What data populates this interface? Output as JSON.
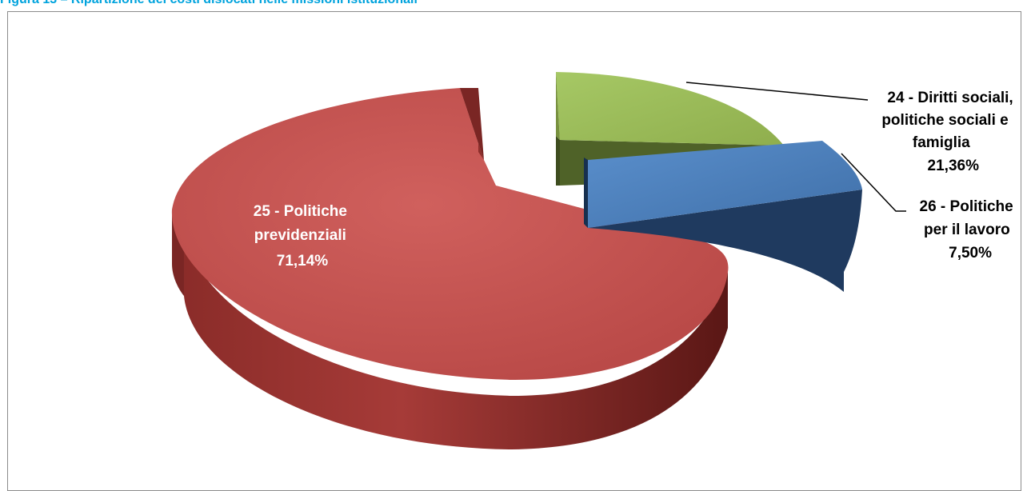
{
  "caption": "Figura 13 – Ripartizione dei costi dislocati nelle missioni istituzionali",
  "chart_data": {
    "type": "pie",
    "style": "3d-exploded",
    "series": [
      {
        "name": "Ripartizione dei costi",
        "slices": [
          {
            "key": "s24",
            "label_lines": [
              "24 - Diritti sociali,",
              "politiche sociali e",
              "famiglia"
            ],
            "label_pct": "21,36%",
            "value": 21.36,
            "color": "#9bbb59",
            "side_color": "#4f6228"
          },
          {
            "key": "s26",
            "label_lines": [
              "26 - Politiche",
              "per il lavoro"
            ],
            "label_pct": "7,50%",
            "value": 7.5,
            "color": "#4f81bd",
            "side_color": "#1f3a5f"
          },
          {
            "key": "s25",
            "label_lines": [
              "25 - Politiche",
              "previdenziali"
            ],
            "label_pct": "71,14%",
            "value": 71.14,
            "color": "#c0504d",
            "side_color": "#6b211f"
          }
        ]
      }
    ],
    "legend": "none",
    "label_color_inside": "#ffffff",
    "label_color_outside": "#000000"
  }
}
